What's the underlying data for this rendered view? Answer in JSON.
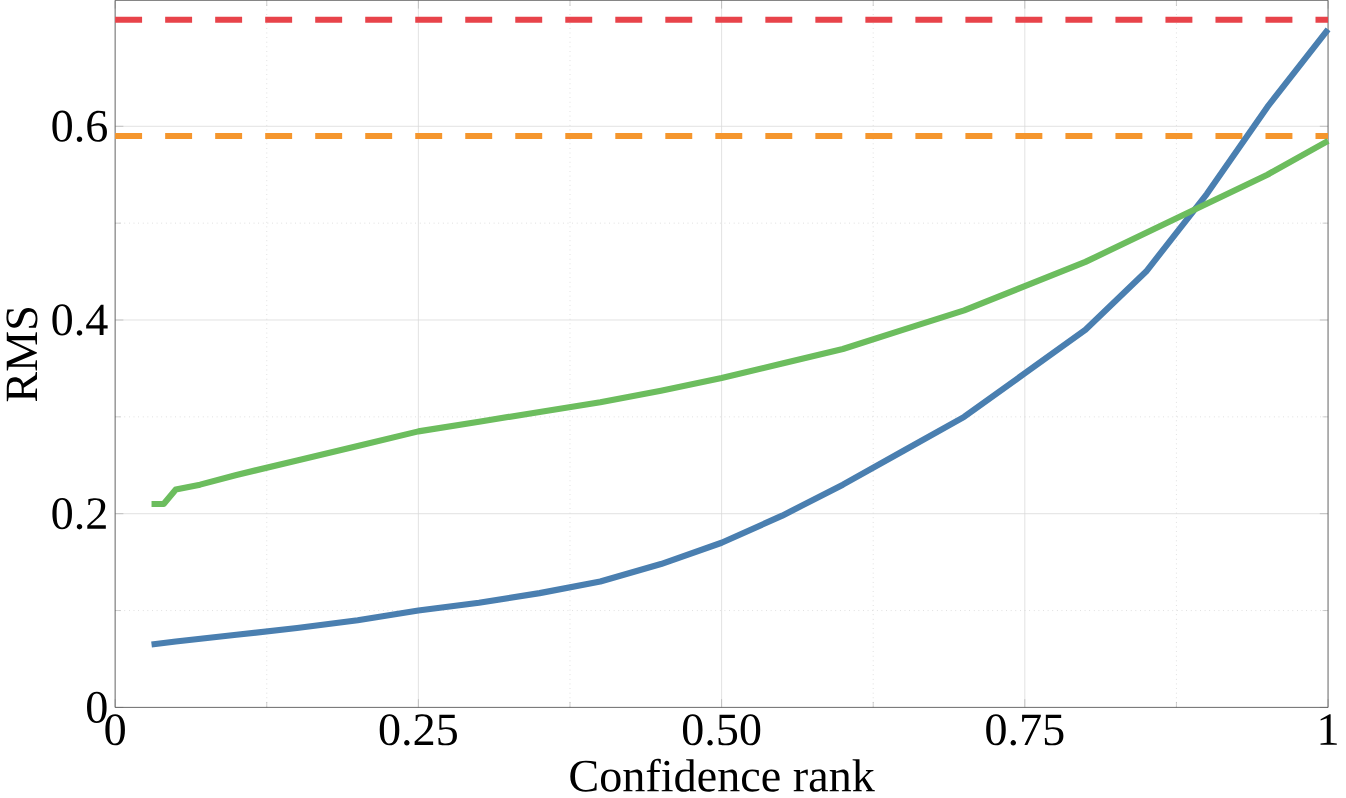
{
  "chart_data": {
    "type": "line",
    "xlabel": "Confidence rank",
    "ylabel": "RMS",
    "xlim": [
      0,
      1
    ],
    "ylim": [
      0,
      0.73
    ],
    "xticks": [
      0,
      {
        "value": 0.25,
        "label": "0.25"
      },
      {
        "value": 0.5,
        "label": "0.50"
      },
      {
        "value": 0.75,
        "label": "0.75"
      },
      1
    ],
    "yticks": [
      0,
      0.2,
      0.4,
      0.6
    ],
    "grid": true,
    "series": [
      {
        "color": "#4a7fb0",
        "x": [
          0.03,
          0.05,
          0.1,
          0.15,
          0.2,
          0.25,
          0.3,
          0.35,
          0.4,
          0.45,
          0.5,
          0.55,
          0.6,
          0.65,
          0.7,
          0.75,
          0.8,
          0.85,
          0.9,
          0.95,
          1.0
        ],
        "values": [
          0.065,
          0.068,
          0.075,
          0.082,
          0.09,
          0.1,
          0.108,
          0.118,
          0.13,
          0.148,
          0.17,
          0.198,
          0.23,
          0.265,
          0.3,
          0.345,
          0.39,
          0.45,
          0.53,
          0.62,
          0.7
        ]
      },
      {
        "color": "#6cbd5e",
        "x": [
          0.03,
          0.04,
          0.05,
          0.07,
          0.1,
          0.15,
          0.2,
          0.25,
          0.3,
          0.35,
          0.4,
          0.45,
          0.5,
          0.55,
          0.6,
          0.65,
          0.7,
          0.75,
          0.8,
          0.85,
          0.9,
          0.95,
          1.0
        ],
        "values": [
          0.21,
          0.21,
          0.225,
          0.23,
          0.24,
          0.255,
          0.27,
          0.285,
          0.295,
          0.305,
          0.315,
          0.327,
          0.34,
          0.355,
          0.37,
          0.39,
          0.41,
          0.435,
          0.46,
          0.49,
          0.52,
          0.55,
          0.585
        ]
      }
    ],
    "ref_lines": [
      {
        "axis": "y",
        "value": 0.71,
        "color": "#e8434a",
        "line_style": "dashed"
      },
      {
        "axis": "y",
        "value": 0.59,
        "color": "#f5962d",
        "line_style": "dashed"
      }
    ]
  }
}
